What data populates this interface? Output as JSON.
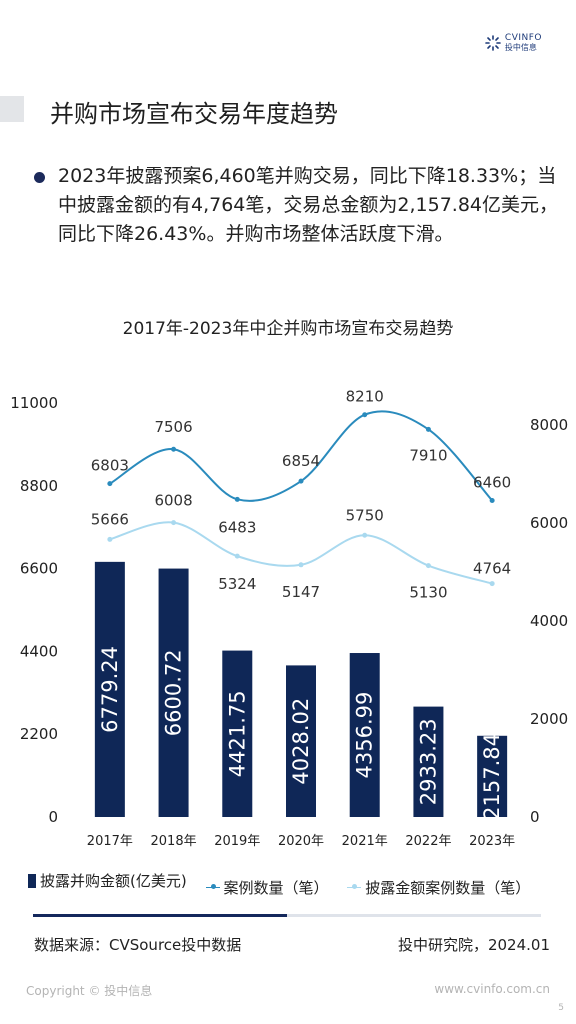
{
  "header": {
    "logo_en": "CVINFO",
    "logo_cn": "投中信息",
    "section_title": "并购市场宣布交易年度趋势"
  },
  "summary": {
    "text": "2023年披露预案6,460笔并购交易，同比下降18.33%；当中披露金额的有4,764笔，交易总金额为2,157.84亿美元，同比下降26.43%。并购市场整体活跃度下滑。"
  },
  "chart_data": {
    "type": "bar",
    "title": "2017年-2023年中企并购市场宣布交易趋势",
    "categories": [
      "2017年",
      "2018年",
      "2019年",
      "2020年",
      "2021年",
      "2022年",
      "2023年"
    ],
    "left_axis": {
      "min": 0,
      "max": 11000,
      "ticks": [
        0,
        2200,
        4400,
        6600,
        8800,
        11000
      ]
    },
    "right_axis": {
      "min": 0,
      "max": 8000,
      "ticks": [
        0,
        2000,
        4000,
        6000,
        8000
      ]
    },
    "series": [
      {
        "name": "披露并购金额(亿美元)",
        "type": "bar",
        "axis": "left",
        "color": "#0f2757",
        "values": [
          6779.24,
          6600.72,
          4421.75,
          4028.02,
          4356.99,
          2933.23,
          2157.84
        ]
      },
      {
        "name": "案例数量（笔）",
        "type": "line",
        "axis": "right",
        "color": "#2a8bbd",
        "values": [
          6803,
          7506,
          6483,
          6854,
          8210,
          7910,
          6460
        ]
      },
      {
        "name": "披露金额案例数量（笔）",
        "type": "line",
        "axis": "right",
        "color": "#a9d9ef",
        "values": [
          5666,
          6008,
          5324,
          5147,
          5750,
          5130,
          4764
        ]
      }
    ],
    "grid": false,
    "legend_position": "bottom"
  },
  "progress": {
    "fraction": 0.5
  },
  "footer": {
    "source": "数据来源：CVSource投中数据",
    "institute": "投中研究院，2024.01",
    "copyright": "Copyright © 投中信息",
    "website": "www.cvinfo.com.cn",
    "page": "5"
  }
}
